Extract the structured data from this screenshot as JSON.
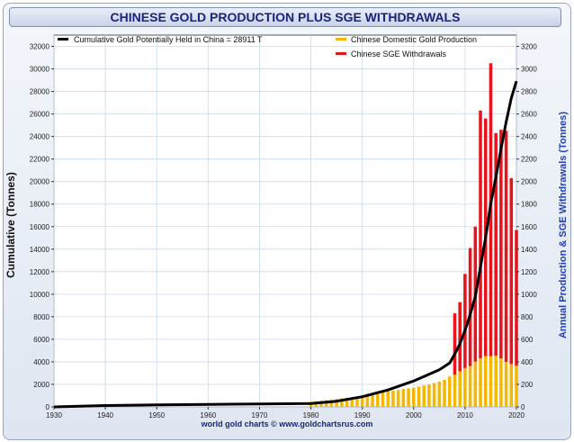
{
  "title": "CHINESE GOLD PRODUCTION PLUS SGE WITHDRAWALS",
  "footer": "world gold charts © www.goldchartsrus.com",
  "colors": {
    "cumulative": "#000000",
    "production": "#f5b800",
    "sge": "#e8131b",
    "title": "#1a237e",
    "right_axis": "#1f3fbf"
  },
  "chart_data": {
    "type": "bar",
    "title": "CHINESE GOLD PRODUCTION PLUS SGE WITHDRAWALS",
    "xlabel": "",
    "ylabel": "Cumulative (Tonnes)",
    "y2label": "Annual Production & SGE Withdrawals (Tonnes)",
    "xlim": [
      1930,
      2020
    ],
    "ylim": [
      0,
      33000
    ],
    "y2lim": [
      0,
      3300
    ],
    "xticks": [
      1930,
      1940,
      1950,
      1960,
      1970,
      1980,
      1990,
      2000,
      2010,
      2020
    ],
    "yticks": [
      0,
      2000,
      4000,
      6000,
      8000,
      10000,
      12000,
      14000,
      16000,
      18000,
      20000,
      22000,
      24000,
      26000,
      28000,
      30000,
      32000
    ],
    "y2ticks": [
      0,
      200,
      400,
      600,
      800,
      1000,
      1200,
      1400,
      1600,
      1800,
      2000,
      2200,
      2400,
      2600,
      2800,
      3000,
      3200
    ],
    "grid": true,
    "legend_position": "top",
    "series": [
      {
        "name": "Chinese Domestic Gold Production",
        "axis": "right",
        "kind": "bar",
        "x": [
          1980,
          1981,
          1982,
          1983,
          1984,
          1985,
          1986,
          1987,
          1988,
          1989,
          1990,
          1991,
          1992,
          1993,
          1994,
          1995,
          1996,
          1997,
          1998,
          1999,
          2000,
          2001,
          2002,
          2003,
          2004,
          2005,
          2006,
          2007,
          2008,
          2009,
          2010,
          2011,
          2012,
          2013,
          2014,
          2015,
          2016,
          2017,
          2018,
          2019,
          2020
        ],
        "values": [
          45,
          50,
          55,
          60,
          65,
          70,
          75,
          80,
          85,
          90,
          100,
          110,
          120,
          130,
          140,
          140,
          145,
          150,
          160,
          165,
          170,
          180,
          190,
          200,
          212,
          225,
          240,
          270,
          285,
          315,
          345,
          362,
          403,
          430,
          450,
          450,
          455,
          430,
          400,
          380,
          365
        ]
      },
      {
        "name": "Chinese SGE Withdrawals",
        "axis": "right",
        "kind": "bar",
        "x": [
          2008,
          2009,
          2010,
          2011,
          2012,
          2013,
          2014,
          2015,
          2016,
          2017,
          2018,
          2019,
          2020
        ],
        "values": [
          830,
          930,
          1180,
          1410,
          1600,
          2630,
          2560,
          3050,
          2430,
          2460,
          2450,
          2030,
          1570
        ]
      },
      {
        "name": "Cumulative Gold Potentially Held in China  = 28911 T",
        "axis": "left",
        "kind": "line",
        "x": [
          1930,
          1940,
          1950,
          1960,
          1970,
          1980,
          1985,
          1990,
          1995,
          2000,
          2005,
          2007,
          2008,
          2009,
          2010,
          2011,
          2012,
          2013,
          2014,
          2015,
          2016,
          2017,
          2018,
          2019,
          2020
        ],
        "values": [
          0,
          120,
          180,
          220,
          260,
          300,
          500,
          900,
          1500,
          2300,
          3300,
          3900,
          4700,
          5600,
          6800,
          8200,
          9800,
          12400,
          15000,
          18000,
          20400,
          22900,
          25300,
          27400,
          28911
        ]
      }
    ]
  }
}
